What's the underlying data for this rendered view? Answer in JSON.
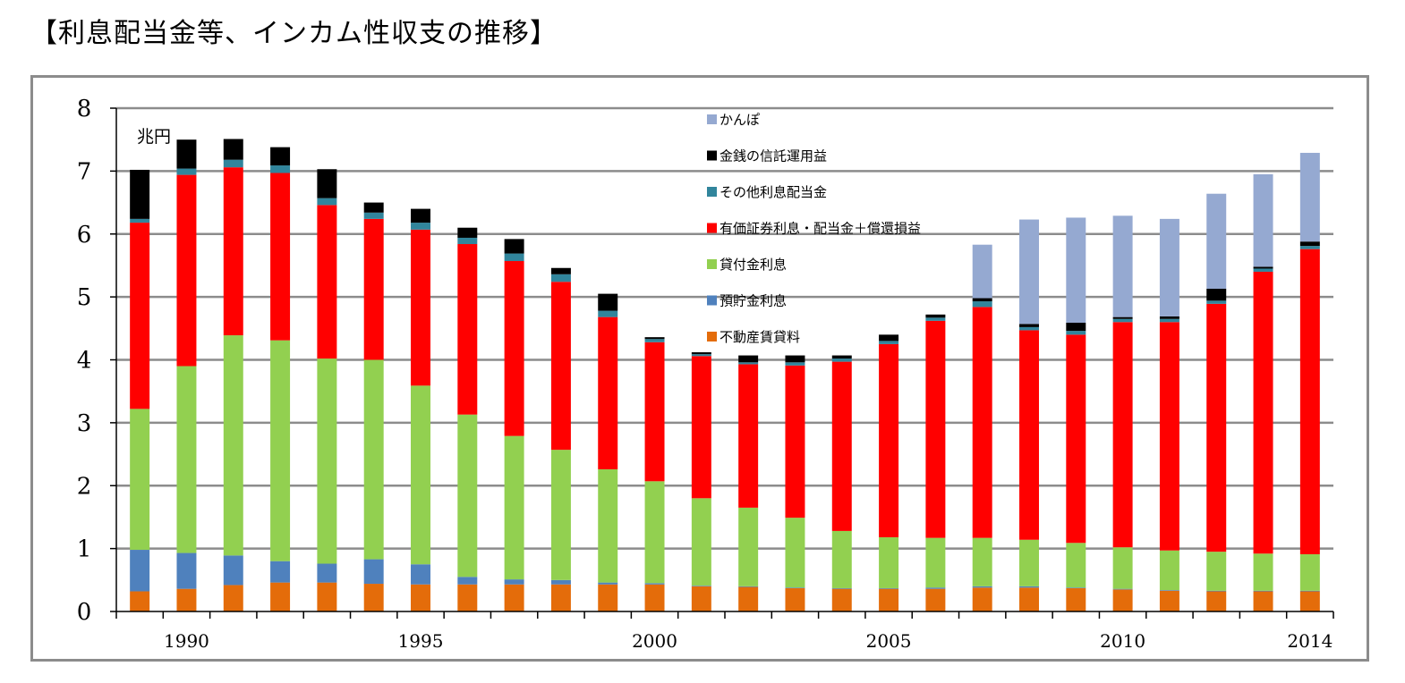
{
  "page": {
    "title": "【利息配当金等、インカム性収支の推移】"
  },
  "chart_data": {
    "type": "bar",
    "stacked": true,
    "unit_label": "兆円",
    "ylim": [
      0,
      8
    ],
    "yticks": [
      0,
      1,
      2,
      3,
      4,
      5,
      6,
      7,
      8
    ],
    "grid": true,
    "legend_position": "top-center",
    "categories": [
      1989,
      1990,
      1991,
      1992,
      1993,
      1994,
      1995,
      1996,
      1997,
      1998,
      1999,
      2000,
      2001,
      2002,
      2003,
      2004,
      2005,
      2006,
      2007,
      2008,
      2009,
      2010,
      2011,
      2012,
      2013,
      2014
    ],
    "x_tick_labels": [
      {
        "year": 1990,
        "label": "1990"
      },
      {
        "year": 1995,
        "label": "1995"
      },
      {
        "year": 2000,
        "label": "2000"
      },
      {
        "year": 2005,
        "label": "2005"
      },
      {
        "year": 2010,
        "label": "2010"
      },
      {
        "year": 2014,
        "label": "2014"
      }
    ],
    "series": [
      {
        "name": "不動産賃貸料",
        "color": "#e46c0a",
        "values": [
          0.32,
          0.36,
          0.42,
          0.46,
          0.46,
          0.44,
          0.43,
          0.43,
          0.43,
          0.43,
          0.43,
          0.43,
          0.4,
          0.39,
          0.37,
          0.36,
          0.36,
          0.36,
          0.38,
          0.38,
          0.37,
          0.35,
          0.33,
          0.32,
          0.32,
          0.32
        ]
      },
      {
        "name": "預貯金利息",
        "color": "#4f81bd",
        "values": [
          0.66,
          0.57,
          0.47,
          0.34,
          0.3,
          0.39,
          0.32,
          0.12,
          0.08,
          0.07,
          0.03,
          0.02,
          0.01,
          0.01,
          0.01,
          0.01,
          0.01,
          0.02,
          0.02,
          0.02,
          0.01,
          0.01,
          0.01,
          0.01,
          0.01,
          0.01
        ]
      },
      {
        "name": "貸付金利息",
        "color": "#92d050",
        "values": [
          2.24,
          2.97,
          3.5,
          3.51,
          3.26,
          3.17,
          2.84,
          2.58,
          2.28,
          2.07,
          1.8,
          1.62,
          1.39,
          1.25,
          1.11,
          0.91,
          0.81,
          0.79,
          0.77,
          0.74,
          0.71,
          0.66,
          0.63,
          0.62,
          0.59,
          0.58
        ]
      },
      {
        "name": "有価証券利息・配当金＋償還損益",
        "color": "#ff0000",
        "values": [
          2.96,
          3.04,
          2.67,
          2.66,
          2.44,
          2.24,
          2.48,
          2.71,
          2.78,
          2.67,
          2.42,
          2.21,
          2.26,
          2.28,
          2.42,
          2.69,
          3.07,
          3.45,
          3.67,
          3.33,
          3.31,
          3.58,
          3.63,
          3.94,
          4.48,
          4.85
        ]
      },
      {
        "name": "その他利息配当金",
        "color": "#31859c",
        "values": [
          0.06,
          0.1,
          0.12,
          0.12,
          0.11,
          0.1,
          0.11,
          0.1,
          0.12,
          0.12,
          0.1,
          0.05,
          0.03,
          0.03,
          0.05,
          0.05,
          0.05,
          0.05,
          0.09,
          0.05,
          0.06,
          0.05,
          0.05,
          0.05,
          0.05,
          0.05
        ]
      },
      {
        "name": "金銭の信託運用益",
        "color": "#000000",
        "values": [
          0.78,
          0.46,
          0.33,
          0.29,
          0.46,
          0.16,
          0.22,
          0.16,
          0.23,
          0.1,
          0.27,
          0.03,
          0.03,
          0.11,
          0.11,
          0.05,
          0.1,
          0.05,
          0.05,
          0.05,
          0.13,
          0.03,
          0.04,
          0.19,
          0.03,
          0.07
        ]
      },
      {
        "name": "かんぽ",
        "color": "#95a9d1",
        "values": [
          0,
          0,
          0,
          0,
          0,
          0,
          0,
          0,
          0,
          0,
          0,
          0,
          0,
          0,
          0,
          0,
          0,
          0,
          0.85,
          1.66,
          1.67,
          1.61,
          1.55,
          1.51,
          1.47,
          1.41
        ]
      }
    ],
    "legend_order": [
      "かんぽ",
      "金銭の信託運用益",
      "その他利息配当金",
      "有価証券利息・配当金＋償還損益",
      "貸付金利息",
      "預貯金利息",
      "不動産賃貸料"
    ],
    "colors": {
      "grid": "#8c8c8c",
      "axis": "#000000",
      "frame": "#8c8c8c"
    }
  }
}
